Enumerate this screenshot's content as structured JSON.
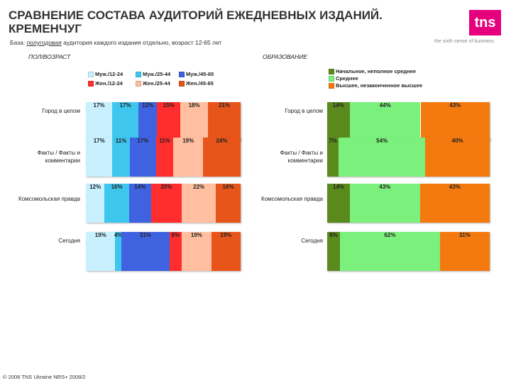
{
  "header": {
    "title_line1": "СРАВНЕНИЕ СОСТАВА АУДИТОРИЙ ЕЖЕДНЕВНЫХ ИЗДАНИЙ.",
    "title_line2": "КРЕМЕНЧУГ",
    "logo_text": "tns",
    "tagline": "the sixth sense of business",
    "base_prefix": "База: ",
    "base_underlined": "полугодовая",
    "base_suffix": " аудитория каждого издания отдельно, возраст 12-65 лет"
  },
  "footer": "© 2008 TNS Ukraine  NRS+ 2008/2",
  "chart_data": [
    {
      "type": "bar",
      "stacked": true,
      "orientation": "horizontal",
      "title": "ПОЛ/ВОЗРАСТ",
      "categories": [
        "Город в целом",
        "Факты / Факты и комментарии",
        "Комсомольская правда",
        "Сегодня"
      ],
      "series": [
        {
          "name": "Муж./12-24",
          "color": "#c8f0ff",
          "values": [
            17,
            17,
            12,
            19
          ]
        },
        {
          "name": "Муж./25-44",
          "color": "#3fc6ee",
          "values": [
            17,
            11,
            16,
            4
          ]
        },
        {
          "name": "Муж./45-65",
          "color": "#3f62e0",
          "values": [
            12,
            17,
            14,
            31
          ]
        },
        {
          "name": "Жен./12-24",
          "color": "#ff2d2d",
          "values": [
            15,
            11,
            20,
            8
          ]
        },
        {
          "name": "Жен./25-44",
          "color": "#ffbfa0",
          "values": [
            18,
            19,
            22,
            19
          ]
        },
        {
          "name": "Жен./45-65",
          "color": "#e8551a",
          "values": [
            21,
            24,
            16,
            19
          ]
        }
      ],
      "labels": [
        [
          "17%",
          "17%",
          "12%",
          "15%",
          "18%",
          "21%"
        ],
        [
          "17%",
          "11%",
          "17%",
          "11%",
          "19%",
          "24%"
        ],
        [
          "12%",
          "16%",
          "14%",
          "20%",
          "22%",
          "16%"
        ],
        [
          "19%",
          "4%",
          "31%",
          "8%",
          "19%",
          "19%"
        ]
      ],
      "legend": "top"
    },
    {
      "type": "bar",
      "stacked": true,
      "orientation": "horizontal",
      "title": "ОБРАЗОВАНИЕ",
      "categories": [
        "Город в целом",
        "Факты / Факты и комментарии",
        "Комсомольская правда",
        "Сегодня"
      ],
      "series": [
        {
          "name": "Начальное, неполное среднее",
          "color": "#5a8a1e",
          "values": [
            14,
            7,
            14,
            8
          ]
        },
        {
          "name": "Среднее",
          "color": "#7cf07c",
          "values": [
            44,
            54,
            43,
            62
          ]
        },
        {
          "name": "Высшее, незаконченное высшее",
          "color": "#f47a10",
          "values": [
            43,
            40,
            43,
            31
          ]
        }
      ],
      "labels": [
        [
          "14%",
          "44%",
          "43%"
        ],
        [
          "7%",
          "54%",
          "40%"
        ],
        [
          "14%",
          "43%",
          "43%"
        ],
        [
          "8%",
          "62%",
          "31%"
        ]
      ],
      "legend": "top"
    }
  ]
}
